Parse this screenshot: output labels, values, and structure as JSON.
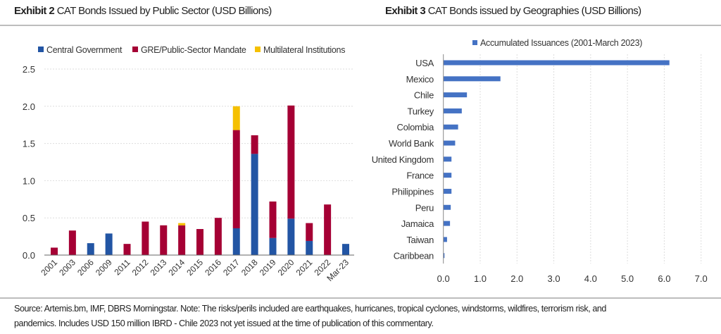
{
  "chart_data": [
    {
      "type": "bar",
      "stacked": true,
      "exhibit_label": "Exhibit 2",
      "title": "CAT Bonds Issued by Public Sector (USD Billions)",
      "xlabel": "",
      "ylabel": "",
      "ylim": [
        0,
        2.5
      ],
      "yticks": [
        "0.0",
        "0.5",
        "1.0",
        "1.5",
        "2.0",
        "2.5"
      ],
      "grid": true,
      "legend_position": "top",
      "categories": [
        "2001",
        "2003",
        "2006",
        "2009",
        "2011",
        "2012",
        "2013",
        "2014",
        "2015",
        "2016",
        "2017",
        "2018",
        "2019",
        "2020",
        "2021",
        "2022",
        "Mar-23"
      ],
      "series": [
        {
          "name": "Central Government",
          "color": "#2255a4",
          "values": [
            0,
            0,
            0.16,
            0.29,
            0,
            0,
            0,
            0,
            0,
            0,
            0.36,
            1.36,
            0.23,
            0.49,
            0.19,
            0,
            0.15
          ]
        },
        {
          "name": "GRE/Public-Sector Mandate",
          "color": "#a50034",
          "values": [
            0.1,
            0.33,
            0,
            0,
            0.15,
            0.45,
            0.4,
            0.4,
            0.35,
            0.5,
            1.32,
            0.25,
            0.49,
            1.52,
            0.24,
            0.68,
            0
          ]
        },
        {
          "name": "Multilateral Institutions",
          "color": "#f5c000",
          "values": [
            0,
            0,
            0,
            0,
            0,
            0,
            0,
            0.03,
            0,
            0,
            0.32,
            0,
            0,
            0,
            0,
            0,
            0
          ]
        }
      ]
    },
    {
      "type": "bar",
      "orientation": "horizontal",
      "exhibit_label": "Exhibit 3",
      "title": "CAT Bonds issued by Geographies (USD Billions)",
      "xlabel": "",
      "ylabel": "",
      "xlim": [
        0,
        7
      ],
      "xticks": [
        "0.0",
        "1.0",
        "2.0",
        "3.0",
        "4.0",
        "5.0",
        "6.0",
        "7.0"
      ],
      "grid": true,
      "legend_position": "top",
      "categories": [
        "USA",
        "Mexico",
        "Chile",
        "Turkey",
        "Colombia",
        "World Bank",
        "United Kingdom",
        "France",
        "Philippines",
        "Peru",
        "Jamaica",
        "Taiwan",
        "Caribbean"
      ],
      "series": [
        {
          "name": "Accumulated Issuances (2001-March 2023)",
          "color": "#4472c4",
          "values": [
            6.14,
            1.55,
            0.64,
            0.5,
            0.4,
            0.32,
            0.22,
            0.22,
            0.22,
            0.2,
            0.18,
            0.1,
            0.03
          ]
        }
      ]
    }
  ],
  "footer": {
    "line1": "Source: Artemis.bm, IMF, DBRS Morningstar. Note: The risks/perils included are earthquakes, hurricanes, tropical cyclones, windstorms, wildfires,  terrorism risk, and",
    "line2": "pandemics. Includes USD 150 million IBRD - Chile 2023 not yet issued at the time of publication of this commentary."
  }
}
